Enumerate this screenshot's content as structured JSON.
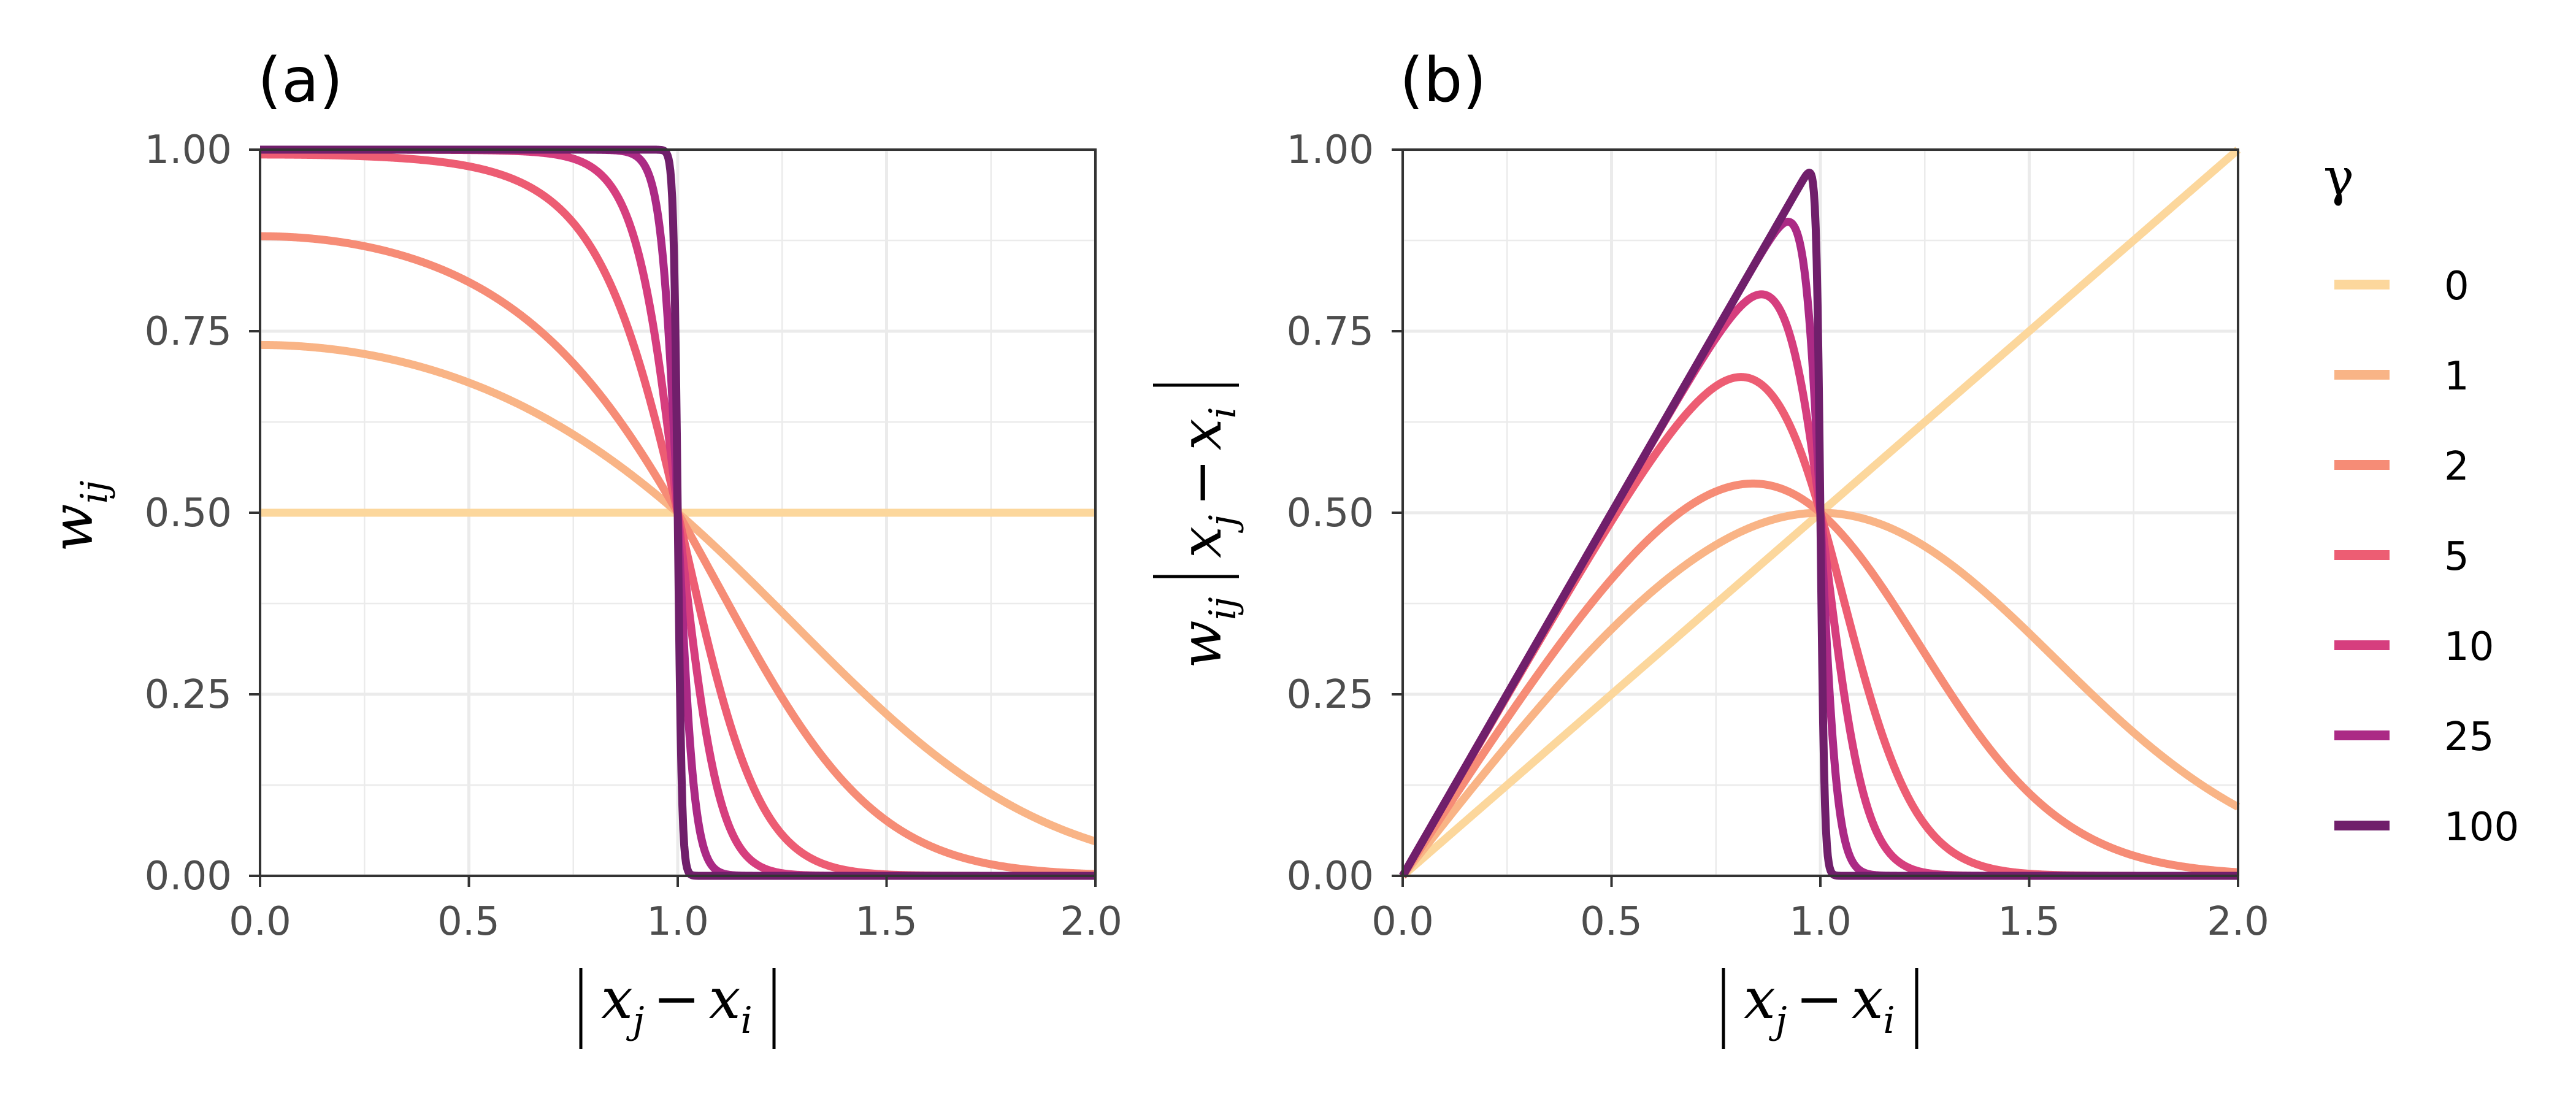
{
  "chart_data": [
    {
      "panel": "(a)",
      "type": "line",
      "function": "w_ij = 1 / (1 + exp(gamma * (x^2 - 1)))",
      "xlabel": "|x_j - x_i|",
      "ylabel": "w_ij",
      "xlim": [
        0,
        2
      ],
      "ylim": [
        0,
        1
      ],
      "xticks": [
        "0.0",
        "0.5",
        "1.0",
        "1.5",
        "2.0"
      ],
      "yticks": [
        "0.00",
        "0.25",
        "0.50",
        "0.75",
        "1.00"
      ],
      "grid": true,
      "series": [
        {
          "name": "0",
          "color": "#fcd79c",
          "x": [
            0,
            0.5,
            1.0,
            1.5,
            2.0
          ],
          "values": [
            0.5,
            0.5,
            0.5,
            0.5,
            0.5
          ]
        },
        {
          "name": "1",
          "color": "#f9b486",
          "x": [
            0,
            0.5,
            1.0,
            1.5,
            2.0
          ],
          "values": [
            0.73,
            0.68,
            0.5,
            0.22,
            0.05
          ]
        },
        {
          "name": "2",
          "color": "#f68c76",
          "x": [
            0,
            0.5,
            1.0,
            1.5,
            2.0
          ],
          "values": [
            0.88,
            0.82,
            0.5,
            0.08,
            0.0
          ]
        },
        {
          "name": "5",
          "color": "#ed5d73",
          "x": [
            0,
            0.5,
            1.0,
            1.5,
            2.0
          ],
          "values": [
            0.99,
            0.98,
            0.5,
            0.0,
            0.0
          ]
        },
        {
          "name": "10",
          "color": "#d63e7e",
          "x": [
            0,
            0.5,
            1.0,
            1.5,
            2.0
          ],
          "values": [
            1.0,
            1.0,
            0.5,
            0.0,
            0.0
          ]
        },
        {
          "name": "25",
          "color": "#ab2a85",
          "x": [
            0,
            0.5,
            1.0,
            1.5,
            2.0
          ],
          "values": [
            1.0,
            1.0,
            0.5,
            0.0,
            0.0
          ]
        },
        {
          "name": "100",
          "color": "#701f6b",
          "x": [
            0,
            0.5,
            1.0,
            1.5,
            2.0
          ],
          "values": [
            1.0,
            1.0,
            0.5,
            0.0,
            0.0
          ]
        }
      ]
    },
    {
      "panel": "(b)",
      "type": "line",
      "function": "w_ij * |x_j - x_i|",
      "xlabel": "|x_j - x_i|",
      "ylabel": "w_ij |x_j - x_i|",
      "xlim": [
        0,
        2
      ],
      "ylim": [
        0,
        1
      ],
      "xticks": [
        "0.0",
        "0.5",
        "1.0",
        "1.5",
        "2.0"
      ],
      "yticks": [
        "0.00",
        "0.25",
        "0.50",
        "0.75",
        "1.00"
      ],
      "grid": true,
      "series": [
        {
          "name": "0",
          "color": "#fcd79c",
          "x": [
            0,
            0.5,
            1.0,
            1.5,
            2.0
          ],
          "values": [
            0.0,
            0.25,
            0.5,
            0.75,
            1.0
          ]
        },
        {
          "name": "1",
          "color": "#f9b486",
          "x": [
            0,
            0.5,
            1.0,
            1.5,
            2.0
          ],
          "values": [
            0.0,
            0.34,
            0.5,
            0.33,
            0.1
          ]
        },
        {
          "name": "2",
          "color": "#f68c76",
          "x": [
            0,
            0.5,
            1.0,
            1.5,
            2.0
          ],
          "values": [
            0.0,
            0.41,
            0.5,
            0.12,
            0.01
          ]
        },
        {
          "name": "5",
          "color": "#ed5d73",
          "x": [
            0,
            0.5,
            1.0,
            1.5,
            2.0
          ],
          "values": [
            0.0,
            0.49,
            0.5,
            0.0,
            0.0
          ]
        },
        {
          "name": "10",
          "color": "#d63e7e",
          "x": [
            0,
            0.5,
            1.0,
            1.5,
            2.0
          ],
          "values": [
            0.0,
            0.5,
            0.5,
            0.0,
            0.0
          ]
        },
        {
          "name": "25",
          "color": "#ab2a85",
          "x": [
            0,
            0.5,
            1.0,
            1.5,
            2.0
          ],
          "values": [
            0.0,
            0.5,
            0.5,
            0.0,
            0.0
          ]
        },
        {
          "name": "100",
          "color": "#701f6b",
          "x": [
            0,
            0.5,
            1.0,
            1.5,
            2.0
          ],
          "values": [
            0.0,
            0.5,
            0.5,
            0.0,
            0.0
          ]
        }
      ]
    }
  ],
  "legend": {
    "title": "γ",
    "gammas": [
      0,
      1,
      2,
      5,
      10,
      25,
      100
    ],
    "labels": [
      "0",
      "1",
      "2",
      "5",
      "10",
      "25",
      "100"
    ],
    "colors": [
      "#fcd79c",
      "#f9b486",
      "#f68c76",
      "#ed5d73",
      "#d63e7e",
      "#ab2a85",
      "#701f6b"
    ]
  },
  "axis_text": {
    "x_var_j": "x",
    "x_sub_j": "j",
    "minus": "−",
    "x_var_i": "x",
    "x_sub_i": "i",
    "w_var": "w",
    "w_sub": "ij"
  }
}
